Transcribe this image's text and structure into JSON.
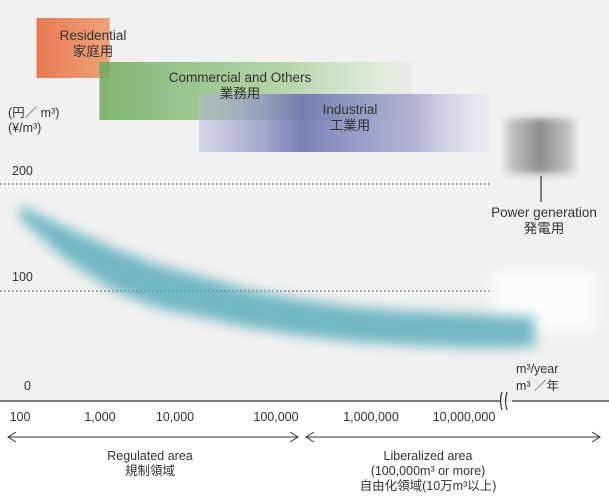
{
  "chart_data": {
    "type": "area",
    "y_unit": [
      "(円／ m³)",
      "(¥/m³)"
    ],
    "y_ticks": [
      {
        "value": 0,
        "label": "0"
      },
      {
        "value": 100,
        "label": "100"
      },
      {
        "value": 200,
        "label": "200"
      }
    ],
    "ylim": [
      0,
      250
    ],
    "x_scale": "log",
    "x_ticks": [
      {
        "value": 100,
        "label": "100"
      },
      {
        "value": 1000,
        "label": "1,000"
      },
      {
        "value": 10000,
        "label": "10,000"
      },
      {
        "value": 100000,
        "label": "100,000"
      },
      {
        "value": 1000000,
        "label": "1,000,000"
      },
      {
        "value": 10000000,
        "label": "10,000,000"
      }
    ],
    "x_unit": [
      "m³/year",
      "m³ ／年"
    ],
    "grid": "dotted lines at 100 and 200",
    "price_band": {
      "x": [
        100,
        300,
        1000,
        3000,
        10000,
        30000,
        100000,
        300000,
        1000000,
        3000000,
        10000000,
        30000000
      ],
      "upper": [
        180,
        160,
        140,
        124,
        112,
        100,
        92,
        86,
        82,
        80,
        78,
        76
      ],
      "lower": [
        168,
        130,
        100,
        84,
        74,
        65,
        58,
        53,
        50,
        48,
        47,
        48
      ],
      "color": "#4aa5b5"
    },
    "power_generation_band": {
      "x_start": 10000000,
      "upper": 200,
      "lower": 100,
      "color": "#dcdcdc"
    },
    "customer_segments": [
      {
        "name": "Residential",
        "name_ja": "家庭用",
        "x_start": 150,
        "x_end": 900,
        "color": "#e8734a"
      },
      {
        "name": "Commercial and Others",
        "name_ja": "業務用",
        "x_start": 700,
        "x_end": 1500000,
        "color": "#7fb56c"
      },
      {
        "name": "Industrial",
        "name_ja": "工業用",
        "x_start": 8000,
        "x_end": 10000000,
        "color": "#7276b3"
      },
      {
        "name": "Power generation",
        "name_ja": "発電用",
        "x_start": 10000000,
        "color": "#8a8a8a"
      }
    ],
    "regions": [
      {
        "name": "Regulated area",
        "name_ja": "規制領域",
        "x_start": 100,
        "x_end": 100000
      },
      {
        "name": "Liberalized area",
        "note": "(100,000m³ or more)",
        "name_ja": "自由化領域(10万m³以上)",
        "x_start": 100000,
        "x_end": 100000000
      }
    ]
  }
}
